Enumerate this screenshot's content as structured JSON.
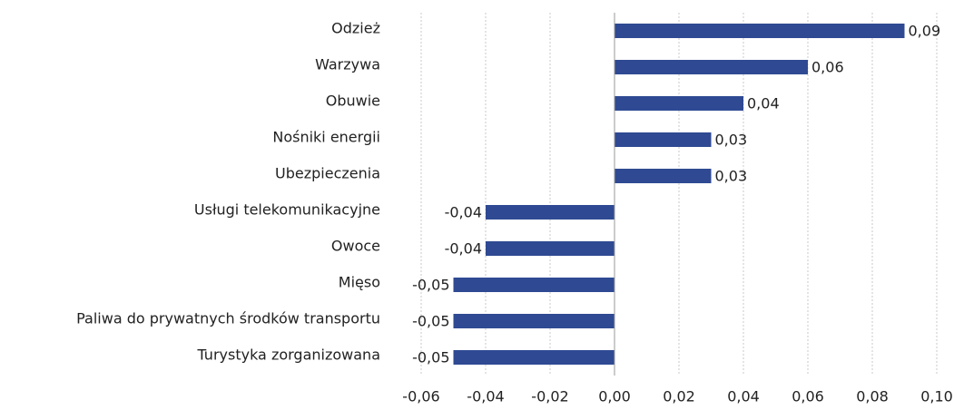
{
  "chart_data": {
    "type": "bar",
    "orientation": "horizontal",
    "categories": [
      "Odzież",
      "Warzywa",
      "Obuwie",
      "Nośniki energii",
      "Ubezpieczenia",
      "Usługi telekomunikacyjne",
      "Owoce",
      "Mięso",
      "Paliwa do prywatnych środków transportu",
      "Turystyka zorganizowana"
    ],
    "values": [
      0.09,
      0.06,
      0.04,
      0.03,
      0.03,
      -0.04,
      -0.04,
      -0.05,
      -0.05,
      -0.05
    ],
    "value_labels": [
      "0,09",
      "0,06",
      "0,04",
      "0,03",
      "0,03",
      "-0,04",
      "-0,04",
      "-0,05",
      "-0,05",
      "-0,05"
    ],
    "color": "#2f4a93",
    "xlim": [
      -0.06,
      0.1
    ],
    "xticks": [
      {
        "value": -0.06,
        "label": "-0,06"
      },
      {
        "value": -0.04,
        "label": "-0,04"
      },
      {
        "value": -0.02,
        "label": "-0,02"
      },
      {
        "value": 0,
        "label": "0,00"
      },
      {
        "value": 0.02,
        "label": "0,02"
      },
      {
        "value": 0.04,
        "label": "0,04"
      },
      {
        "value": 0.06,
        "label": "0,06"
      },
      {
        "value": 0.08,
        "label": "0,08"
      },
      {
        "value": 0.1,
        "label": "0,10"
      }
    ],
    "grid": true
  }
}
